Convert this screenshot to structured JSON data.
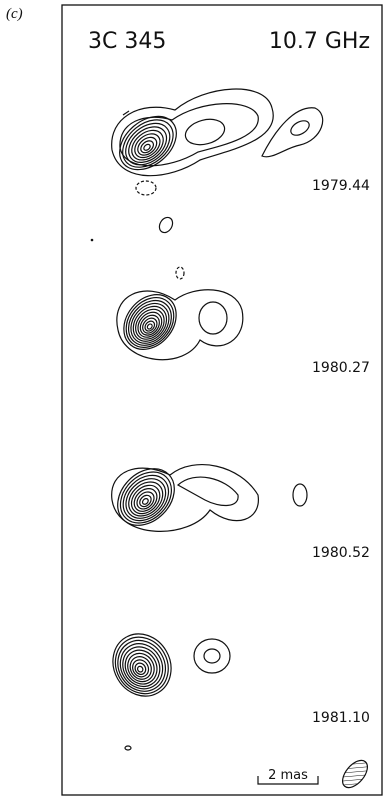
{
  "panel_label": "(c)",
  "source": "3C 345",
  "frequency": "10.7 GHz",
  "epochs": [
    "1979.44",
    "1980.27",
    "1980.52",
    "1981.10"
  ],
  "scale_bar": "2 mas"
}
